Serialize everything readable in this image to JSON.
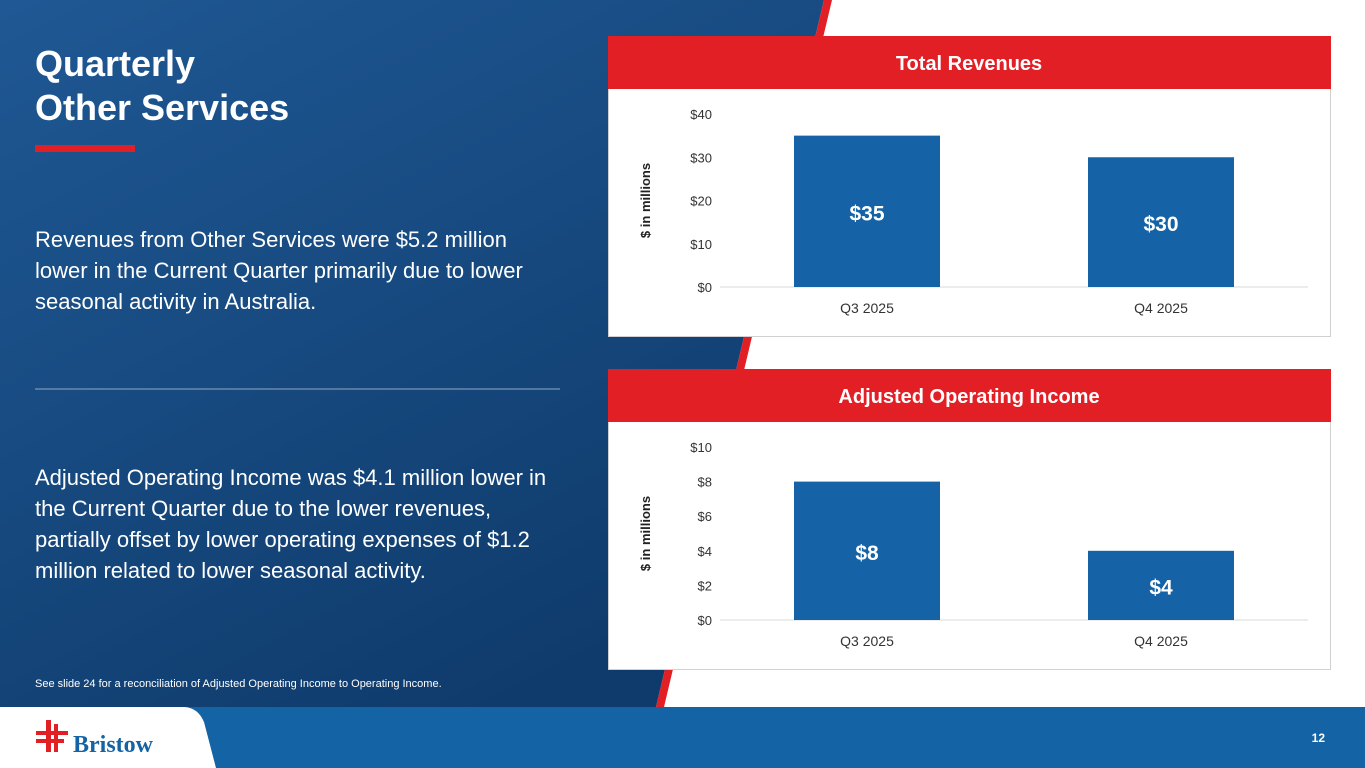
{
  "header": {
    "title": [
      "Quarterly",
      "Other Services"
    ]
  },
  "paragraphs": [
    "Revenues from Other Services were $5.2 million lower in the Current Quarter primarily due to lower seasonal activity in Australia.",
    "Adjusted Operating Income was $4.1 million lower in the Current Quarter due to the lower revenues, partially offset by lower operating expenses of $1.2 million related to lower seasonal activity."
  ],
  "footnote": "See slide 24 for a reconciliation of Adjusted Operating Income to Operating Income.",
  "footer": {
    "logo": "Bristow",
    "page_number": "12"
  },
  "chart_data": [
    {
      "type": "bar",
      "title": "Total Revenues",
      "y_label": "$ in millions",
      "categories": [
        "Q3 2025",
        "Q4 2025"
      ],
      "values": [
        35,
        30
      ],
      "value_labels": [
        "$35",
        "$30"
      ],
      "color": "#1563a6",
      "ylim": [
        0,
        40
      ],
      "yticks": [
        {
          "value": 0,
          "label": "$0"
        },
        {
          "value": 10,
          "label": "$10"
        },
        {
          "value": 20,
          "label": "$20"
        },
        {
          "value": 30,
          "label": "$30"
        },
        {
          "value": 40,
          "label": "$40"
        }
      ],
      "grid": false
    },
    {
      "type": "bar",
      "title": "Adjusted Operating Income",
      "y_label": "$ in millions",
      "categories": [
        "Q3 2025",
        "Q4 2025"
      ],
      "values": [
        8,
        4
      ],
      "value_labels": [
        "$8",
        "$4"
      ],
      "color": "#1563a6",
      "ylim": [
        0,
        10
      ],
      "yticks": [
        {
          "value": 0,
          "label": "$0"
        },
        {
          "value": 2,
          "label": "$2"
        },
        {
          "value": 4,
          "label": "$4"
        },
        {
          "value": 6,
          "label": "$6"
        },
        {
          "value": 8,
          "label": "$8"
        },
        {
          "value": 10,
          "label": "$10"
        }
      ],
      "grid": false
    }
  ]
}
